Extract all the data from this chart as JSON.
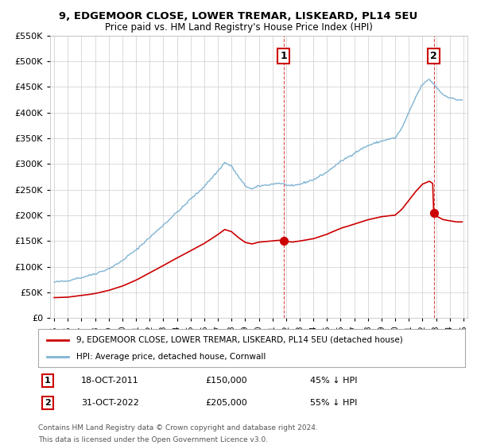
{
  "title": "9, EDGEMOOR CLOSE, LOWER TREMAR, LISKEARD, PL14 5EU",
  "subtitle": "Price paid vs. HM Land Registry's House Price Index (HPI)",
  "hpi_color": "#7fb3d3",
  "property_color": "#cc0000",
  "sale1_date": "18-OCT-2011",
  "sale1_price": 150000,
  "sale1_pct": "45%",
  "sale2_date": "31-OCT-2022",
  "sale2_price": 205000,
  "sale2_pct": "55%",
  "legend_property": "9, EDGEMOOR CLOSE, LOWER TREMAR, LISKEARD, PL14 5EU (detached house)",
  "legend_hpi": "HPI: Average price, detached house, Cornwall",
  "footnote1": "Contains HM Land Registry data © Crown copyright and database right 2024.",
  "footnote2": "This data is licensed under the Open Government Licence v3.0.",
  "ylim": [
    0,
    550000
  ],
  "yticks": [
    0,
    50000,
    100000,
    150000,
    200000,
    250000,
    300000,
    350000,
    400000,
    450000,
    500000,
    550000
  ],
  "background_color": "#ffffff",
  "grid_color": "#cccccc",
  "sale1_year": 2011.83,
  "sale2_year": 2022.83
}
